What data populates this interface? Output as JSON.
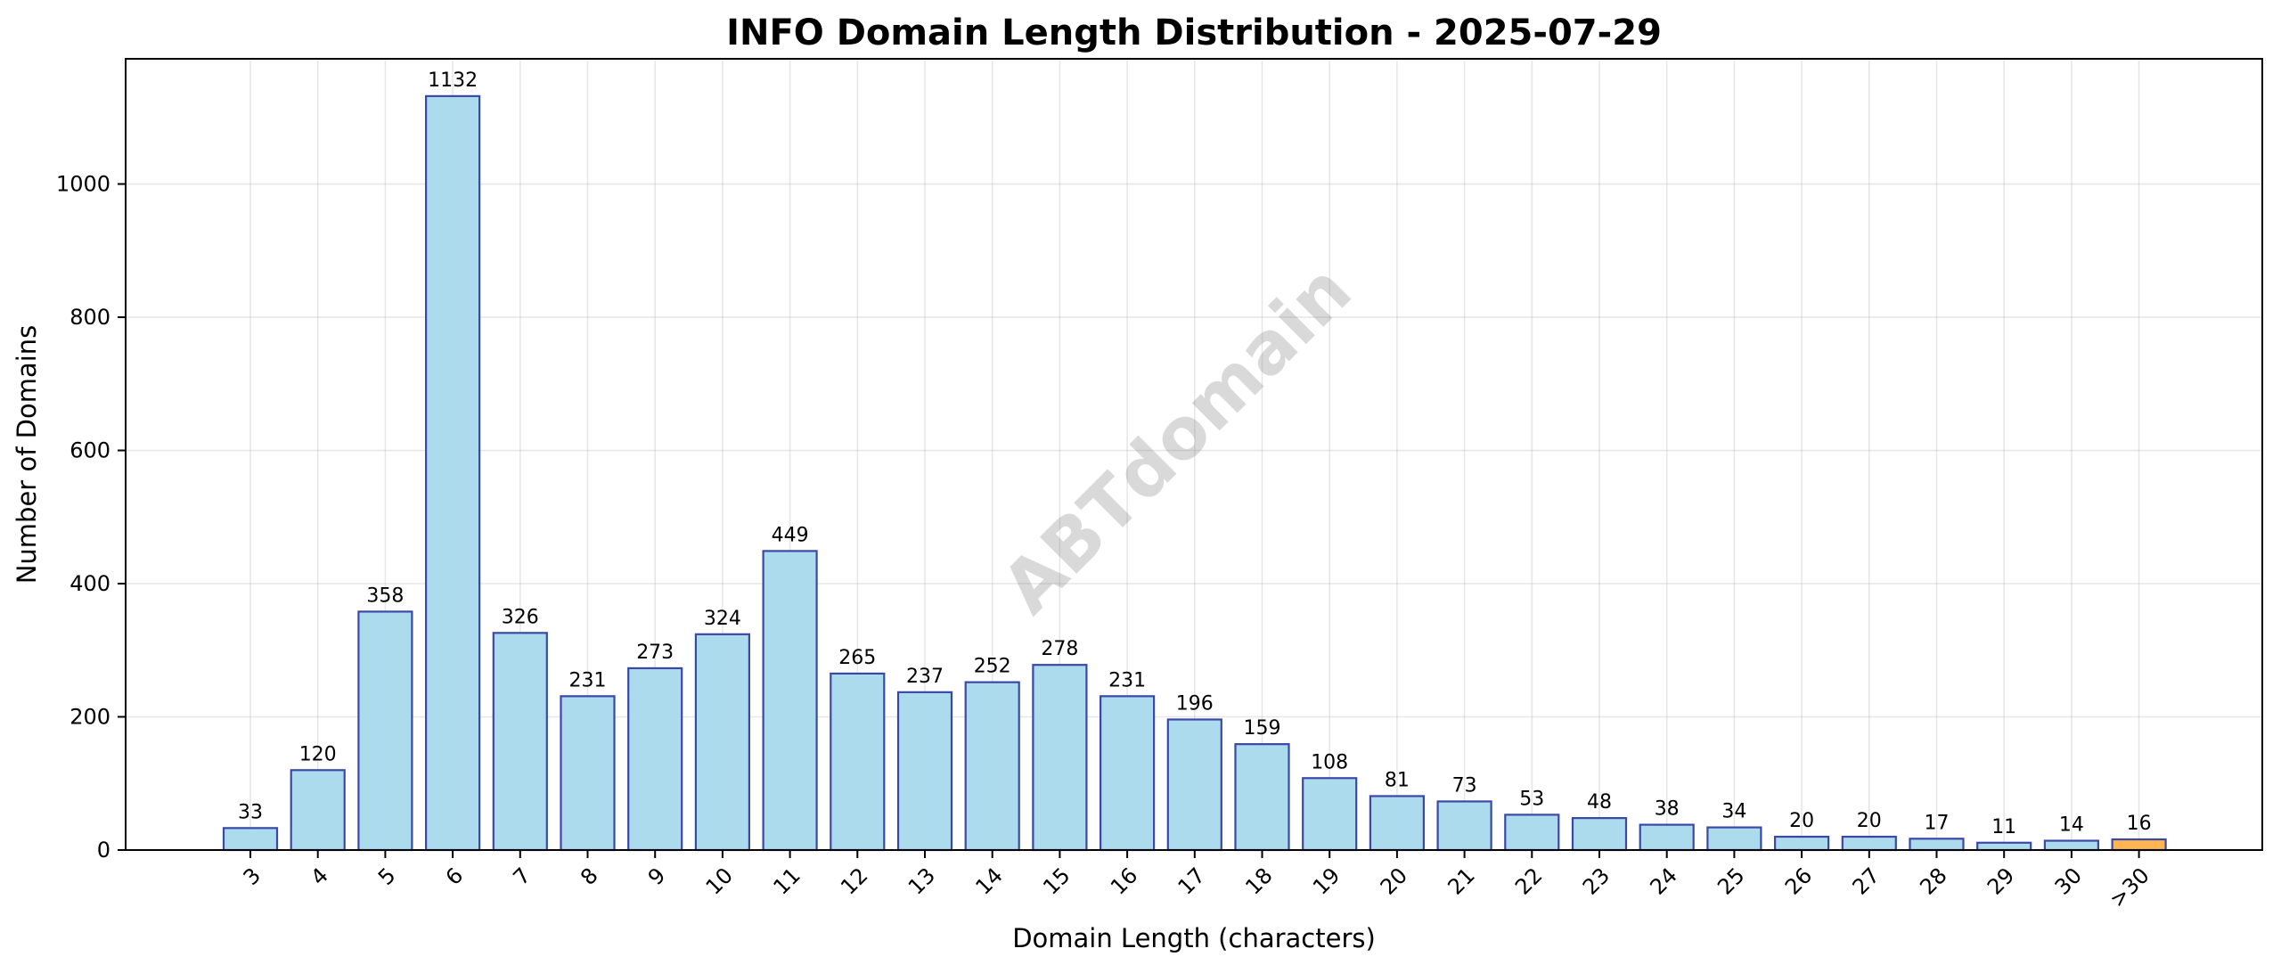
{
  "watermark": "ABTdomain",
  "colors": {
    "bar_fill": "#ADDBEE",
    "bar_edge": "#3A48A8",
    "highlight_fill": "#FFB552",
    "highlight_edge": "#3A48A8"
  },
  "chart_data": {
    "type": "bar",
    "title": "INFO Domain Length Distribution - 2025-07-29",
    "xlabel": "Domain Length (characters)",
    "ylabel": "Number of Domains",
    "ylim": [
      0,
      1188
    ],
    "yticks": [
      0,
      200,
      400,
      600,
      800,
      1000
    ],
    "grid": true,
    "categories": [
      "3",
      "4",
      "5",
      "6",
      "7",
      "8",
      "9",
      "10",
      "11",
      "12",
      "13",
      "14",
      "15",
      "16",
      "17",
      "18",
      "19",
      "20",
      "21",
      "22",
      "23",
      "24",
      "25",
      "26",
      "27",
      "28",
      "29",
      "30",
      ">30"
    ],
    "values": [
      33,
      120,
      358,
      1132,
      326,
      231,
      273,
      324,
      449,
      265,
      237,
      252,
      278,
      231,
      196,
      159,
      108,
      81,
      73,
      53,
      48,
      38,
      34,
      20,
      20,
      17,
      11,
      14,
      16
    ],
    "highlight_category": ">30"
  }
}
